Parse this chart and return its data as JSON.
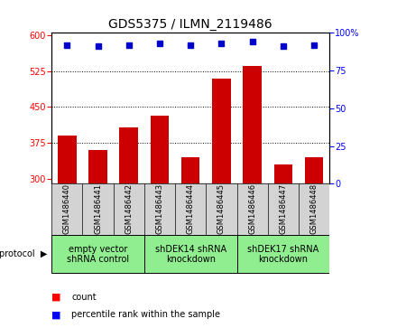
{
  "title": "GDS5375 / ILMN_2119486",
  "samples": [
    "GSM1486440",
    "GSM1486441",
    "GSM1486442",
    "GSM1486443",
    "GSM1486444",
    "GSM1486445",
    "GSM1486446",
    "GSM1486447",
    "GSM1486448"
  ],
  "counts": [
    390,
    360,
    408,
    432,
    345,
    510,
    535,
    330,
    345
  ],
  "percentile_ranks": [
    92,
    91,
    92,
    93,
    92,
    93,
    94,
    91,
    92
  ],
  "ylim_left": [
    290,
    605
  ],
  "ylim_right": [
    0,
    100
  ],
  "yticks_left": [
    300,
    375,
    450,
    525,
    600
  ],
  "yticks_right": [
    0,
    25,
    50,
    75,
    100
  ],
  "bar_color": "#cc0000",
  "dot_color": "#0000cc",
  "bar_width": 0.6,
  "group_spans": [
    [
      0,
      2,
      "empty vector\nshRNA control"
    ],
    [
      3,
      5,
      "shDEK14 shRNA\nknockdown"
    ],
    [
      6,
      8,
      "shDEK17 shRNA\nknockdown"
    ]
  ],
  "protocol_label": "protocol",
  "legend_count_label": "count",
  "legend_percentile_label": "percentile rank within the sample",
  "plot_bg": "#ffffff",
  "tick_area_bg": "#d3d3d3",
  "group_bg": "#90ee90",
  "title_fontsize": 10,
  "tick_fontsize": 7,
  "sample_fontsize": 6,
  "group_fontsize": 7
}
